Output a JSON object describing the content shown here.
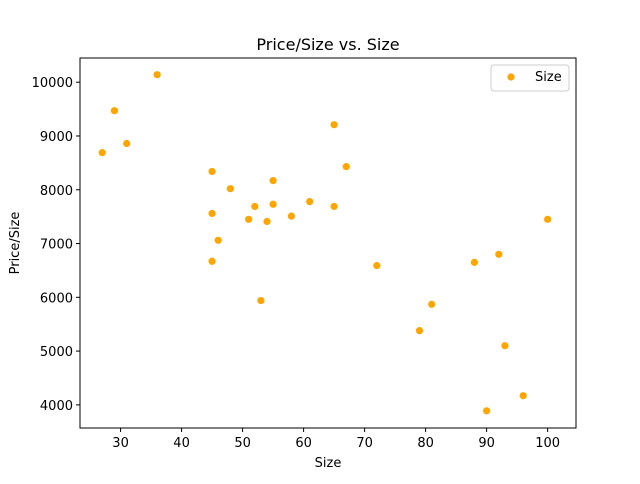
{
  "chart_data": {
    "type": "scatter",
    "title": "Price/Size vs. Size",
    "xlabel": "Size",
    "ylabel": "Price/Size",
    "xlim": [
      23.35,
      104.65
    ],
    "ylim": [
      3570,
      10450
    ],
    "xticks": [
      30,
      40,
      50,
      60,
      70,
      80,
      90,
      100
    ],
    "yticks": [
      4000,
      5000,
      6000,
      7000,
      8000,
      9000,
      10000
    ],
    "grid": false,
    "legend": {
      "position": "top-right",
      "entries": [
        "Size"
      ]
    },
    "series": [
      {
        "name": "Size",
        "color": "#FFA500",
        "points": [
          {
            "x": 27,
            "y": 8690
          },
          {
            "x": 29,
            "y": 9470
          },
          {
            "x": 31,
            "y": 8860
          },
          {
            "x": 36,
            "y": 10140
          },
          {
            "x": 45,
            "y": 8340
          },
          {
            "x": 45,
            "y": 7560
          },
          {
            "x": 45,
            "y": 6670
          },
          {
            "x": 46,
            "y": 7060
          },
          {
            "x": 48,
            "y": 8020
          },
          {
            "x": 51,
            "y": 7450
          },
          {
            "x": 52,
            "y": 7690
          },
          {
            "x": 53,
            "y": 5940
          },
          {
            "x": 54,
            "y": 7410
          },
          {
            "x": 55,
            "y": 8170
          },
          {
            "x": 55,
            "y": 7730
          },
          {
            "x": 58,
            "y": 7510
          },
          {
            "x": 61,
            "y": 7780
          },
          {
            "x": 65,
            "y": 9210
          },
          {
            "x": 65,
            "y": 7690
          },
          {
            "x": 67,
            "y": 8430
          },
          {
            "x": 72,
            "y": 6590
          },
          {
            "x": 79,
            "y": 5380
          },
          {
            "x": 81,
            "y": 5870
          },
          {
            "x": 88,
            "y": 6650
          },
          {
            "x": 90,
            "y": 3890
          },
          {
            "x": 92,
            "y": 6800
          },
          {
            "x": 93,
            "y": 5100
          },
          {
            "x": 96,
            "y": 4170
          },
          {
            "x": 100,
            "y": 7450
          }
        ]
      }
    ]
  }
}
